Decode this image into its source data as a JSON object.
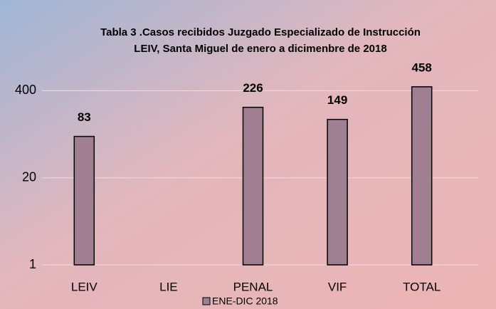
{
  "chart_data": {
    "type": "bar",
    "title": [
      "Tabla 3 .Casos recibidos Juzgado Especializado de Instrucción",
      "LEIV, Santa Miguel de enero a dicimenbre de 2018"
    ],
    "categories": [
      "LEIV",
      "LIE",
      "PENAL",
      "VIF",
      "TOTAL"
    ],
    "series": [
      {
        "name": "ENE-DIC  2018",
        "color": "#a07f92",
        "values": [
          83,
          null,
          226,
          149,
          458
        ]
      }
    ],
    "ylim": [
      1,
      1000
    ],
    "yticks": [
      1,
      20,
      400
    ],
    "log_base": 20,
    "grid": true,
    "legend": "bottom"
  }
}
